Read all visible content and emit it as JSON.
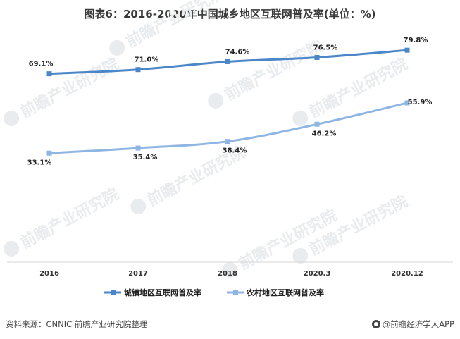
{
  "chart_data": {
    "type": "line",
    "title": "图表6：2016-2020年中国城乡地区互联网普及率(单位：%)",
    "categories": [
      "2016",
      "2017",
      "2018",
      "2020.3",
      "2020.12"
    ],
    "series": [
      {
        "name": "城镇地区互联网普及率",
        "color": "#4a86c8",
        "values": [
          69.1,
          71.0,
          74.6,
          76.5,
          79.8
        ],
        "labels": [
          "69.1%",
          "71.0%",
          "74.6%",
          "76.5%",
          "79.8%"
        ]
      },
      {
        "name": "农村地区互联网普及率",
        "color": "#8fb6e3",
        "values": [
          33.1,
          35.4,
          38.4,
          46.2,
          55.9
        ],
        "labels": [
          "33.1%",
          "35.4%",
          "38.4%",
          "46.2%",
          "55.9%"
        ]
      }
    ],
    "legend_position": "bottom",
    "grid": false
  },
  "watermark": "前瞻产业研究院",
  "footer": {
    "source": "资料来源：CNNIC 前瞻产业研究院整理",
    "brand": "@前瞻经济学人APP"
  }
}
